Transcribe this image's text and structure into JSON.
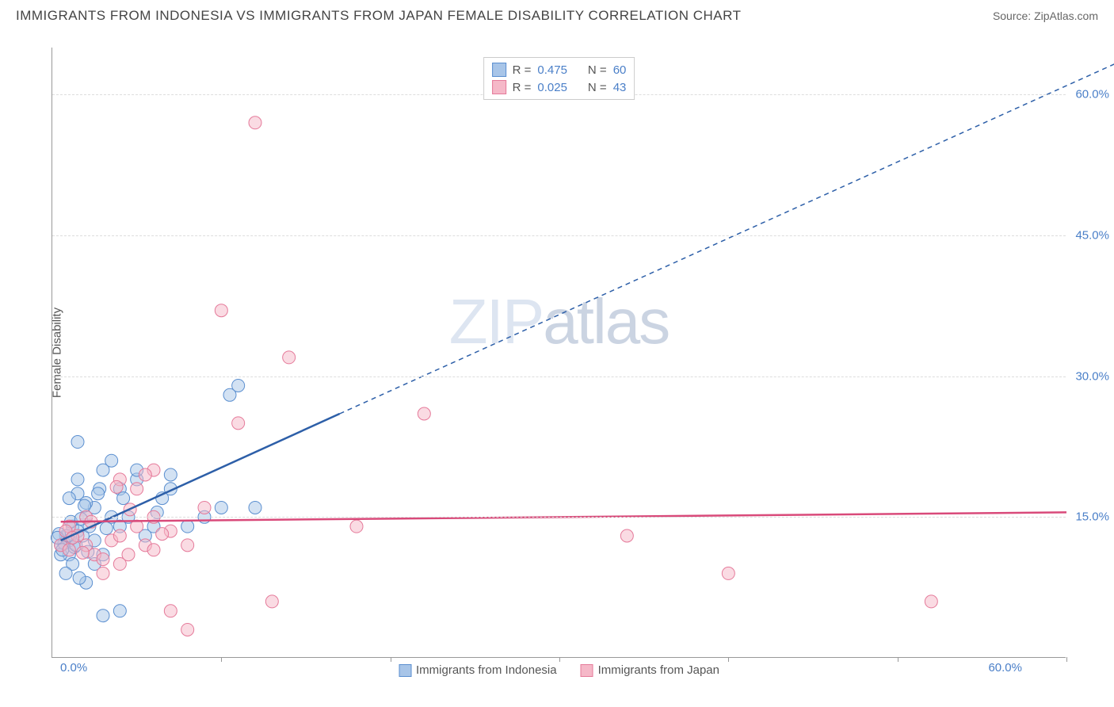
{
  "title": "IMMIGRANTS FROM INDONESIA VS IMMIGRANTS FROM JAPAN FEMALE DISABILITY CORRELATION CHART",
  "source": "Source: ZipAtlas.com",
  "y_axis_label": "Female Disability",
  "watermark_light": "ZIP",
  "watermark_dark": "atlas",
  "chart": {
    "type": "scatter",
    "xlim": [
      0,
      60
    ],
    "ylim": [
      0,
      65
    ],
    "x_ticks": [
      0,
      10,
      20,
      30,
      40,
      50,
      60
    ],
    "x_tick_labels_shown": [
      "0.0%",
      "60.0%"
    ],
    "y_ticks": [
      15,
      30,
      45,
      60
    ],
    "y_tick_labels": [
      "15.0%",
      "30.0%",
      "45.0%",
      "60.0%"
    ],
    "grid_color": "#dddddd",
    "axis_color": "#999999",
    "background_color": "#ffffff",
    "marker_radius": 8,
    "marker_opacity": 0.5,
    "line_width_solid": 2.5,
    "line_width_dashed": 1.5
  },
  "series": [
    {
      "name": "Immigrants from Indonesia",
      "color_fill": "#a8c5e8",
      "color_stroke": "#5b8fd0",
      "r": "0.475",
      "n": "60",
      "regression": {
        "x1": 0.5,
        "y1": 12.5,
        "x2": 17,
        "y2": 26,
        "x2_dashed": 65,
        "y2_dashed": 65
      },
      "points": [
        [
          0.5,
          12
        ],
        [
          0.8,
          13
        ],
        [
          1,
          11
        ],
        [
          1.2,
          14
        ],
        [
          1,
          12.5
        ],
        [
          0.5,
          11
        ],
        [
          1.5,
          13.5
        ],
        [
          0.7,
          12.2
        ],
        [
          1.3,
          11.8
        ],
        [
          0.9,
          13
        ],
        [
          1.1,
          14.5
        ],
        [
          1.4,
          12
        ],
        [
          0.6,
          11.5
        ],
        [
          1.8,
          13
        ],
        [
          2,
          15
        ],
        [
          2.2,
          14
        ],
        [
          2.5,
          16
        ],
        [
          1.5,
          17.5
        ],
        [
          2,
          16.5
        ],
        [
          2.8,
          18
        ],
        [
          1,
          17
        ],
        [
          1.5,
          19
        ],
        [
          3,
          20
        ],
        [
          3.5,
          21
        ],
        [
          4,
          14
        ],
        [
          4.5,
          15
        ],
        [
          5,
          19
        ],
        [
          1.5,
          23
        ],
        [
          2,
          8
        ],
        [
          3,
          4.5
        ],
        [
          4,
          5
        ],
        [
          2.5,
          10
        ],
        [
          3,
          11
        ],
        [
          6,
          14
        ],
        [
          6.5,
          17
        ],
        [
          7,
          18
        ],
        [
          8,
          14
        ],
        [
          9,
          15
        ],
        [
          10,
          16
        ],
        [
          10.5,
          28
        ],
        [
          11,
          29
        ],
        [
          12,
          16
        ],
        [
          7,
          19.5
        ],
        [
          5,
          20
        ],
        [
          4,
          18
        ],
        [
          3.5,
          15
        ],
        [
          2.5,
          12.5
        ],
        [
          1.2,
          10
        ],
        [
          0.8,
          9
        ],
        [
          1.6,
          8.5
        ],
        [
          0.4,
          13.2
        ],
        [
          1.7,
          14.8
        ],
        [
          2.1,
          11.3
        ],
        [
          0.3,
          12.8
        ],
        [
          4.2,
          17
        ],
        [
          5.5,
          13
        ],
        [
          6.2,
          15.5
        ],
        [
          1.9,
          16.2
        ],
        [
          3.2,
          13.8
        ],
        [
          2.7,
          17.5
        ]
      ]
    },
    {
      "name": "Immigrants from Japan",
      "color_fill": "#f5b8c8",
      "color_stroke": "#e57a9a",
      "r": "0.025",
      "n": "43",
      "regression": {
        "x1": 0.5,
        "y1": 14.5,
        "x2": 60,
        "y2": 15.5
      },
      "points": [
        [
          0.5,
          12
        ],
        [
          1,
          11.5
        ],
        [
          1.5,
          13
        ],
        [
          2,
          12
        ],
        [
          2.5,
          11
        ],
        [
          3,
          10.5
        ],
        [
          3.5,
          12.5
        ],
        [
          4,
          13
        ],
        [
          4.5,
          11
        ],
        [
          5,
          14
        ],
        [
          5.5,
          12
        ],
        [
          6,
          11.5
        ],
        [
          7,
          13.5
        ],
        [
          8,
          12
        ],
        [
          6,
          15
        ],
        [
          4,
          19
        ],
        [
          5,
          18
        ],
        [
          6,
          20
        ],
        [
          7,
          5
        ],
        [
          8,
          3
        ],
        [
          9,
          16
        ],
        [
          10,
          37
        ],
        [
          11,
          25
        ],
        [
          12,
          57
        ],
        [
          13,
          6
        ],
        [
          14,
          32
        ],
        [
          18,
          14
        ],
        [
          22,
          26
        ],
        [
          34,
          13
        ],
        [
          40,
          9
        ],
        [
          52,
          6
        ],
        [
          4,
          10
        ],
        [
          3,
          9
        ],
        [
          2,
          15
        ],
        [
          1,
          14
        ],
        [
          0.8,
          13.5
        ],
        [
          1.2,
          12.8
        ],
        [
          5.5,
          19.5
        ],
        [
          3.8,
          18.2
        ],
        [
          6.5,
          13.2
        ],
        [
          2.3,
          14.5
        ],
        [
          4.6,
          15.8
        ],
        [
          1.8,
          11.2
        ]
      ]
    }
  ],
  "bottom_legend": [
    {
      "label": "Immigrants from Indonesia",
      "fill": "#a8c5e8",
      "stroke": "#5b8fd0"
    },
    {
      "label": "Immigrants from Japan",
      "fill": "#f5b8c8",
      "stroke": "#e57a9a"
    }
  ],
  "top_legend_labels": {
    "r_label": "R =",
    "n_label": "N ="
  }
}
